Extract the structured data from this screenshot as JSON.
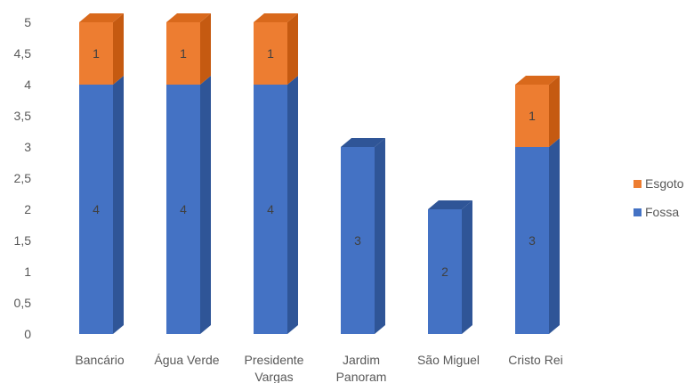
{
  "chart_data": {
    "type": "bar",
    "stacked": true,
    "three_d": true,
    "categories": [
      [
        "Bancário"
      ],
      [
        "Água Verde"
      ],
      [
        "Presidente",
        "Vargas"
      ],
      [
        "Jardim",
        "Panoram"
      ],
      [
        "São Miguel"
      ],
      [
        "Cristo Rei"
      ]
    ],
    "series": [
      {
        "name": "Fossa",
        "values": [
          4,
          4,
          4,
          3,
          2,
          3
        ],
        "color": "#4472C4"
      },
      {
        "name": "Esgoto",
        "values": [
          1,
          1,
          1,
          0,
          0,
          1
        ],
        "color": "#ED7D31"
      }
    ],
    "y_ticks": [
      "0",
      "0,5",
      "1",
      "1,5",
      "2",
      "2,5",
      "3",
      "3,5",
      "4",
      "4,5",
      "5"
    ],
    "ylim": [
      0,
      5
    ],
    "legend_position": "right",
    "grid": false
  },
  "legend": {
    "items": [
      {
        "label": "Esgoto",
        "color": "#ED7D31"
      },
      {
        "label": "Fossa",
        "color": "#4472C4"
      }
    ]
  }
}
